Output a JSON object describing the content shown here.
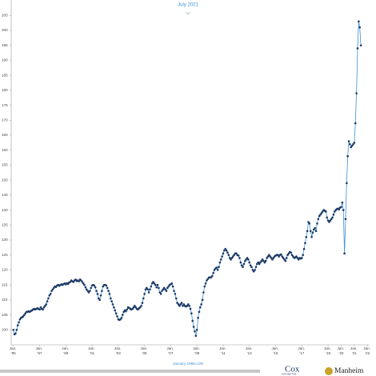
{
  "header": {
    "title": "July 2021"
  },
  "footer": {
    "note": "January 1995=100",
    "logo_1": "Cox",
    "logo_1_sub": "AUTOMOTIVE",
    "logo_2": "Manheim"
  },
  "chart_data": {
    "type": "line",
    "line_color": "#3d8fd6",
    "marker_color": "#1b3a66",
    "ylim": [
      95,
      210
    ],
    "yticks": [
      100,
      105,
      110,
      115,
      120,
      125,
      130,
      135,
      140,
      145,
      150,
      155,
      160,
      165,
      170,
      175,
      180,
      185,
      190,
      195,
      200,
      205
    ],
    "xlim": [
      "1994-11",
      "2022-03"
    ],
    "xticks": [
      {
        "value": "1995-01",
        "label": "Jan. '95"
      },
      {
        "value": "1997-01",
        "label": "Jan. '97"
      },
      {
        "value": "1999-01",
        "label": "Jan. '99"
      },
      {
        "value": "2001-01",
        "label": "Jan. '01"
      },
      {
        "value": "2003-01",
        "label": "Jan. '03"
      },
      {
        "value": "2005-01",
        "label": "Jan. '05"
      },
      {
        "value": "2007-01",
        "label": "Jan. '07"
      },
      {
        "value": "2009-01",
        "label": "Jan. '09"
      },
      {
        "value": "2011-01",
        "label": "Jan. '11"
      },
      {
        "value": "2013-01",
        "label": "Jan. '13"
      },
      {
        "value": "2015-01",
        "label": "Jan. '15"
      },
      {
        "value": "2017-01",
        "label": "Jan. '17"
      },
      {
        "value": "2019-01",
        "label": "Jan. '19"
      },
      {
        "value": "2020-01",
        "label": "Jan. '20"
      },
      {
        "value": "2021-01",
        "label": "Jan. '21"
      },
      {
        "value": "2022-01",
        "label": "Jan. '22"
      }
    ],
    "x": [
      "1995-01",
      "1995-02",
      "1995-03",
      "1995-04",
      "1995-05",
      "1995-06",
      "1995-07",
      "1995-08",
      "1995-09",
      "1995-10",
      "1995-11",
      "1995-12",
      "1996-01",
      "1996-02",
      "1996-03",
      "1996-04",
      "1996-05",
      "1996-06",
      "1996-07",
      "1996-08",
      "1996-09",
      "1996-10",
      "1996-11",
      "1996-12",
      "1997-01",
      "1997-02",
      "1997-03",
      "1997-04",
      "1997-05",
      "1997-06",
      "1997-07",
      "1997-08",
      "1997-09",
      "1997-10",
      "1997-11",
      "1997-12",
      "1998-01",
      "1998-02",
      "1998-03",
      "1998-04",
      "1998-05",
      "1998-06",
      "1998-07",
      "1998-08",
      "1998-09",
      "1998-10",
      "1998-11",
      "1998-12",
      "1999-01",
      "1999-02",
      "1999-03",
      "1999-04",
      "1999-05",
      "1999-06",
      "1999-07",
      "1999-08",
      "1999-09",
      "1999-10",
      "1999-11",
      "1999-12",
      "2000-01",
      "2000-02",
      "2000-03",
      "2000-04",
      "2000-05",
      "2000-06",
      "2000-07",
      "2000-08",
      "2000-09",
      "2000-10",
      "2000-11",
      "2000-12",
      "2001-01",
      "2001-02",
      "2001-03",
      "2001-04",
      "2001-05",
      "2001-06",
      "2001-07",
      "2001-08",
      "2001-09",
      "2001-10",
      "2001-11",
      "2001-12",
      "2002-01",
      "2002-02",
      "2002-03",
      "2002-04",
      "2002-05",
      "2002-06",
      "2002-07",
      "2002-08",
      "2002-09",
      "2002-10",
      "2002-11",
      "2002-12",
      "2003-01",
      "2003-02",
      "2003-03",
      "2003-04",
      "2003-05",
      "2003-06",
      "2003-07",
      "2003-08",
      "2003-09",
      "2003-10",
      "2003-11",
      "2003-12",
      "2004-01",
      "2004-02",
      "2004-03",
      "2004-04",
      "2004-05",
      "2004-06",
      "2004-07",
      "2004-08",
      "2004-09",
      "2004-10",
      "2004-11",
      "2004-12",
      "2005-01",
      "2005-02",
      "2005-03",
      "2005-04",
      "2005-05",
      "2005-06",
      "2005-07",
      "2005-08",
      "2005-09",
      "2005-10",
      "2005-11",
      "2005-12",
      "2006-01",
      "2006-02",
      "2006-03",
      "2006-04",
      "2006-05",
      "2006-06",
      "2006-07",
      "2006-08",
      "2006-09",
      "2006-10",
      "2006-11",
      "2006-12",
      "2007-01",
      "2007-02",
      "2007-03",
      "2007-04",
      "2007-05",
      "2007-06",
      "2007-07",
      "2007-08",
      "2007-09",
      "2007-10",
      "2007-11",
      "2007-12",
      "2008-01",
      "2008-02",
      "2008-03",
      "2008-04",
      "2008-05",
      "2008-06",
      "2008-07",
      "2008-08",
      "2008-09",
      "2008-10",
      "2008-11",
      "2008-12",
      "2009-01",
      "2009-02",
      "2009-03",
      "2009-04",
      "2009-05",
      "2009-06",
      "2009-07",
      "2009-08",
      "2009-09",
      "2009-10",
      "2009-11",
      "2009-12",
      "2010-01",
      "2010-02",
      "2010-03",
      "2010-04",
      "2010-05",
      "2010-06",
      "2010-07",
      "2010-08",
      "2010-09",
      "2010-10",
      "2010-11",
      "2010-12",
      "2011-01",
      "2011-02",
      "2011-03",
      "2011-04",
      "2011-05",
      "2011-06",
      "2011-07",
      "2011-08",
      "2011-09",
      "2011-10",
      "2011-11",
      "2011-12",
      "2012-01",
      "2012-02",
      "2012-03",
      "2012-04",
      "2012-05",
      "2012-06",
      "2012-07",
      "2012-08",
      "2012-09",
      "2012-10",
      "2012-11",
      "2012-12",
      "2013-01",
      "2013-02",
      "2013-03",
      "2013-04",
      "2013-05",
      "2013-06",
      "2013-07",
      "2013-08",
      "2013-09",
      "2013-10",
      "2013-11",
      "2013-12",
      "2014-01",
      "2014-02",
      "2014-03",
      "2014-04",
      "2014-05",
      "2014-06",
      "2014-07",
      "2014-08",
      "2014-09",
      "2014-10",
      "2014-11",
      "2014-12",
      "2015-01",
      "2015-02",
      "2015-03",
      "2015-04",
      "2015-05",
      "2015-06",
      "2015-07",
      "2015-08",
      "2015-09",
      "2015-10",
      "2015-11",
      "2015-12",
      "2016-01",
      "2016-02",
      "2016-03",
      "2016-04",
      "2016-05",
      "2016-06",
      "2016-07",
      "2016-08",
      "2016-09",
      "2016-10",
      "2016-11",
      "2016-12",
      "2017-01",
      "2017-02",
      "2017-03",
      "2017-04",
      "2017-05",
      "2017-06",
      "2017-07",
      "2017-08",
      "2017-09",
      "2017-10",
      "2017-11",
      "2017-12",
      "2018-01",
      "2018-02",
      "2018-03",
      "2018-04",
      "2018-05",
      "2018-06",
      "2018-07",
      "2018-08",
      "2018-09",
      "2018-10",
      "2018-11",
      "2018-12",
      "2019-01",
      "2019-02",
      "2019-03",
      "2019-04",
      "2019-05",
      "2019-06",
      "2019-07",
      "2019-08",
      "2019-09",
      "2019-10",
      "2019-11",
      "2019-12",
      "2020-01",
      "2020-02",
      "2020-03",
      "2020-04",
      "2020-05",
      "2020-06",
      "2020-07",
      "2020-08",
      "2020-09",
      "2020-10",
      "2020-11",
      "2020-12",
      "2021-01",
      "2021-02",
      "2021-03",
      "2021-04",
      "2021-05",
      "2021-06",
      "2021-07"
    ],
    "values": [
      100,
      98.5,
      98.8,
      100,
      101.5,
      102.5,
      103.5,
      104,
      104.2,
      104.5,
      105,
      105.5,
      106,
      106,
      106.2,
      106,
      106.3,
      106.5,
      106.8,
      107,
      106.8,
      107,
      107.2,
      107,
      106.8,
      107.5,
      107,
      106.8,
      107.5,
      108,
      108.5,
      109.5,
      110.5,
      111.5,
      112,
      113,
      113.5,
      114,
      114.5,
      114.3,
      114.8,
      115,
      114.7,
      115,
      115.2,
      115,
      115.3,
      115.5,
      115.2,
      115.6,
      115.3,
      115.8,
      116,
      116.5,
      116.2,
      116,
      116.5,
      116.8,
      116.3,
      116.5,
      116.2,
      116.8,
      116.5,
      116,
      115.5,
      115,
      114.2,
      113.5,
      113,
      112.5,
      113,
      114,
      114.8,
      115,
      114.8,
      114.2,
      113,
      112,
      110.5,
      110,
      111.5,
      113,
      114.5,
      115,
      115,
      114.8,
      114,
      113,
      112,
      110.5,
      109.5,
      108.5,
      107.5,
      106.5,
      105.5,
      104.5,
      103.5,
      103.3,
      103.5,
      104,
      105,
      106,
      106.5,
      106.2,
      106.8,
      107.5,
      107.3,
      107,
      106.8,
      107,
      107.5,
      108,
      107.5,
      107,
      106.8,
      107.2,
      107.5,
      108,
      109,
      110.5,
      112,
      113.5,
      114,
      113.5,
      112.5,
      113.5,
      114.5,
      115.5,
      116,
      115.5,
      115,
      114.2,
      115,
      114,
      112.5,
      112,
      113,
      113.5,
      114,
      113.5,
      113,
      114,
      114.5,
      115,
      115.2,
      115.5,
      114.5,
      113,
      112,
      110.5,
      109,
      108.5,
      108,
      108.5,
      109,
      108,
      108.5,
      108,
      107.8,
      108,
      108.5,
      108,
      107,
      105.5,
      103,
      101,
      99.5,
      98,
      100,
      104,
      106,
      107.5,
      108.5,
      110,
      112.5,
      114.5,
      115.5,
      116.5,
      117,
      117.5,
      117.5,
      117.5,
      118,
      119,
      120,
      120.5,
      120.8,
      120,
      121,
      122.5,
      123.5,
      124.5,
      125.5,
      126.5,
      127,
      126.5,
      125.8,
      125,
      124,
      123.5,
      124,
      124.5,
      125,
      125.5,
      125.5,
      125,
      124.8,
      124,
      122.5,
      121.5,
      121,
      122,
      123,
      123.5,
      124,
      123.5,
      122.5,
      121.5,
      121,
      120,
      119.5,
      120,
      121,
      122,
      122.5,
      122,
      122.5,
      123,
      123.5,
      123,
      122.5,
      123,
      124,
      124.5,
      125,
      124.5,
      124,
      123.5,
      124,
      124.5,
      124.8,
      125,
      125,
      124.5,
      125,
      125.2,
      124.5,
      124,
      123.5,
      123,
      124,
      125,
      125.5,
      126,
      125.8,
      125,
      124.5,
      124,
      124.2,
      124.5,
      124,
      123.5,
      124,
      123.8,
      124,
      125,
      127,
      129,
      131,
      133,
      136,
      135.5,
      133,
      131,
      132.5,
      133.5,
      134,
      133,
      135.5,
      137,
      138,
      138.5,
      139,
      139.5,
      140,
      139.8,
      139.5,
      137.5,
      136.5,
      136,
      136.5,
      137,
      137.5,
      138.5,
      139.5,
      140,
      140.3,
      140.5,
      140.2,
      140.8,
      141,
      142.5,
      140,
      125.5,
      137,
      149,
      158,
      163,
      162,
      161,
      161.5,
      162,
      162.5,
      169,
      179,
      194,
      203,
      201,
      195
    ]
  }
}
